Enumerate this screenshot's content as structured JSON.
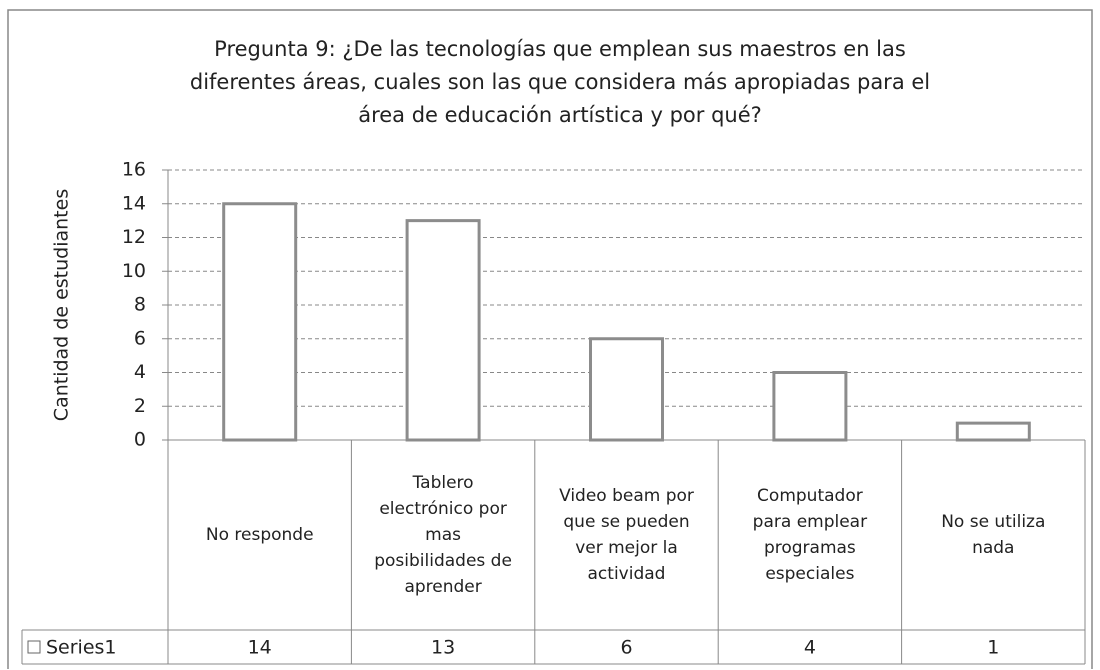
{
  "chart_data": {
    "type": "bar",
    "title": [
      "Pregunta 9: ¿De las tecnologías que emplean sus maestros en las",
      "diferentes áreas, cuales son las que considera más apropiadas para el",
      "área de educación artística y por qué?"
    ],
    "y_label": "Cantidad de estudiantes",
    "categories": [
      "No responde",
      "Tablero electrónico por mas posibilidades de aprender",
      "Video beam por que se pueden ver mejor la actividad",
      "Computador para emplear programas especiales",
      "No se utiliza nada"
    ],
    "series": [
      {
        "name": "Series1",
        "color": "#ffffff",
        "values": [
          14,
          13,
          6,
          4,
          1
        ]
      }
    ],
    "ylim": [
      0,
      16
    ],
    "yticks": [
      0,
      2,
      4,
      6,
      8,
      10,
      12,
      14,
      16
    ],
    "grid": true
  }
}
